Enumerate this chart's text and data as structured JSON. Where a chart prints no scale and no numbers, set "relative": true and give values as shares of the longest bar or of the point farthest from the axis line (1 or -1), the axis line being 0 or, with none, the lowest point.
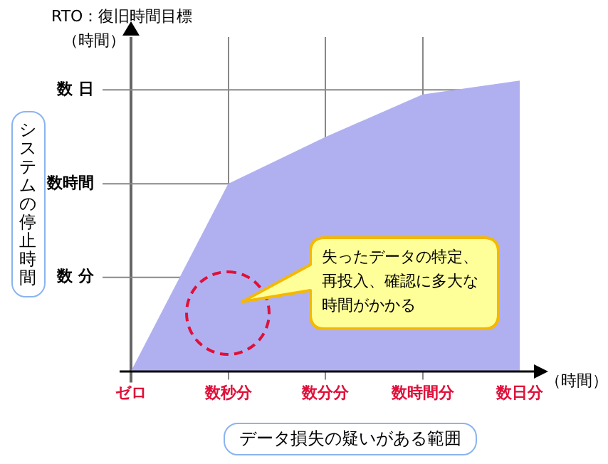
{
  "chart_data": {
    "type": "area",
    "title": "RTO：復旧時間目標",
    "ylabel": "システムの停止時間",
    "xlabel": "データ損失の疑いがある範囲",
    "categories": [
      "ゼロ",
      "数秒分",
      "数分分",
      "数時間分",
      "数日分"
    ],
    "series": [
      {
        "color": "#b0b0f0",
        "values": [
          0,
          0.645,
          0.806,
          0.952,
          1
        ]
      }
    ],
    "relative": true,
    "ref_lines": [
      {
        "axis": "x",
        "value": "ゼロ",
        "color": "#666666"
      },
      {
        "axis": "y",
        "value": 0.323,
        "label": "数 分",
        "color": "#888888"
      },
      {
        "axis": "y",
        "value": 0.645,
        "label": "数時間",
        "color": "#888888"
      },
      {
        "axis": "y",
        "value": 0.968,
        "label": "数 日",
        "color": "#888888"
      }
    ],
    "grid": "x",
    "legend": false,
    "annotations": [
      "（時間）",
      "（時間）",
      "失ったデータの特定、再投入、確認に多大な時間がかかる"
    ]
  }
}
